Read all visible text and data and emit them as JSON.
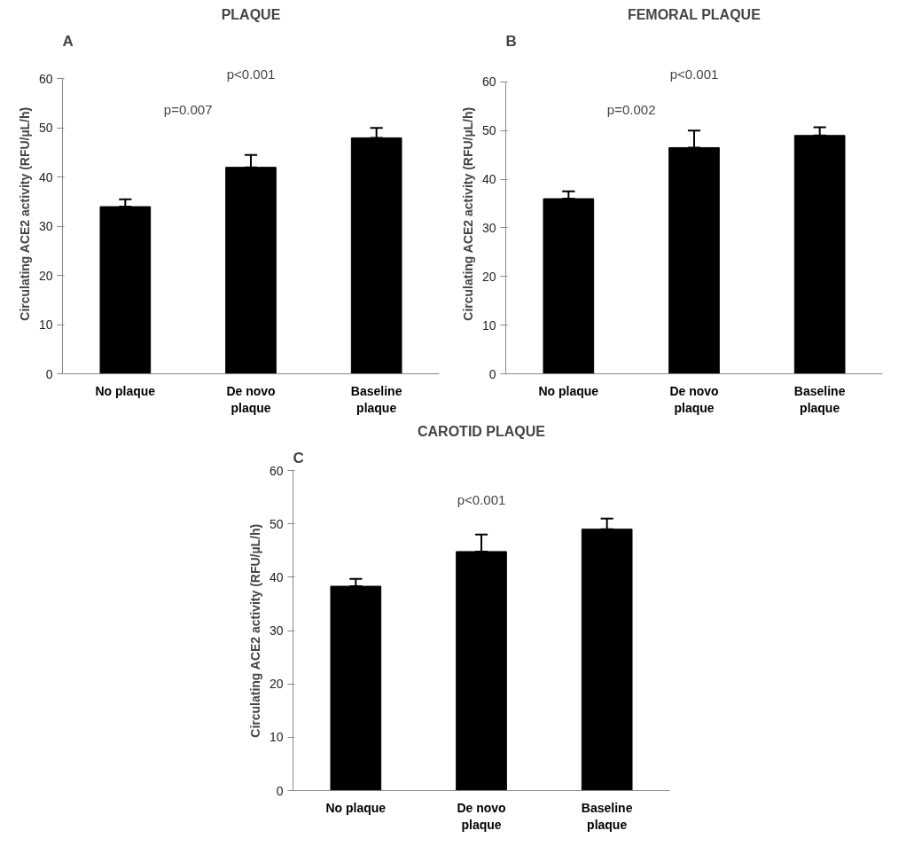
{
  "chart_data": [
    {
      "type": "bar",
      "title": "PLAQUE",
      "ylabel": "Circulating ACE2 activity (RFU/µL/h)",
      "categories": [
        "No plaque",
        "De novo\nplaque",
        "Baseline\nplaque"
      ],
      "values": [
        34,
        42,
        48
      ],
      "color": "#000000",
      "errors": [
        [
          34,
          35.5
        ],
        [
          42,
          44.5
        ],
        [
          48,
          50
        ]
      ],
      "ylim": [
        0,
        60
      ],
      "yticks": [
        0,
        10,
        20,
        30,
        40,
        50,
        60
      ],
      "grid": false,
      "annotations": [
        "A",
        "p=0.007",
        "p<0.001"
      ]
    },
    {
      "type": "bar",
      "title": "FEMORAL PLAQUE",
      "ylabel": "Circulating ACE2 activity (RFU/µL/h)",
      "categories": [
        "No plaque",
        "De novo\nplaque",
        "Baseline\nplaque"
      ],
      "values": [
        36,
        46.5,
        49
      ],
      "color": "#000000",
      "errors": [
        [
          36,
          37.5
        ],
        [
          46.5,
          50
        ],
        [
          49,
          50.7
        ]
      ],
      "ylim": [
        0,
        60
      ],
      "yticks": [
        0,
        10,
        20,
        30,
        40,
        50,
        60
      ],
      "grid": false,
      "annotations": [
        "B",
        "p=0.002",
        "p<0.001"
      ]
    },
    {
      "type": "bar",
      "title": "CAROTID PLAQUE",
      "ylabel": "Circulating ACE2 activity (RFU/µL/h)",
      "categories": [
        "No plaque",
        "De novo\nplaque",
        "Baseline\nplaque"
      ],
      "values": [
        38.3,
        44.8,
        49
      ],
      "color": "#000000",
      "errors": [
        [
          38.3,
          39.7
        ],
        [
          44.8,
          48
        ],
        [
          49,
          51
        ]
      ],
      "ylim": [
        0,
        60
      ],
      "yticks": [
        0,
        10,
        20,
        30,
        40,
        50,
        60
      ],
      "grid": false,
      "annotations": [
        "C",
        "p<0.001"
      ]
    }
  ]
}
